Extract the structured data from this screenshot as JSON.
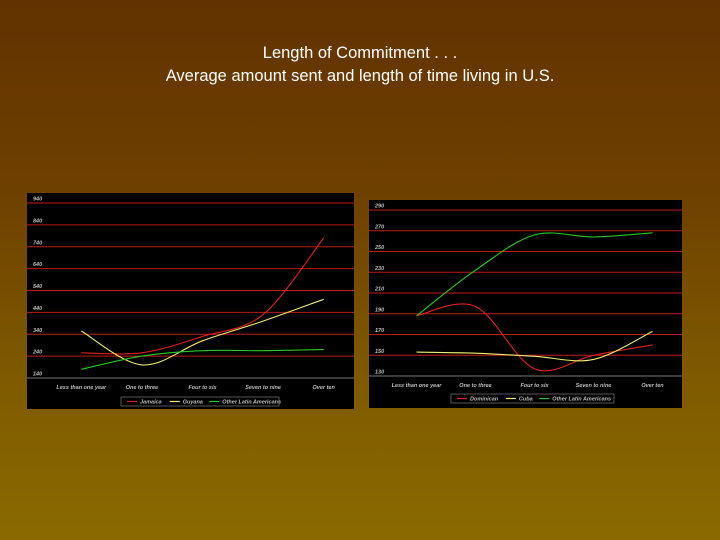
{
  "slide": {
    "title_line1": "Length of Commitment . . .",
    "title_line2": "Average amount sent and length of time living in U.S."
  },
  "chart_data": [
    {
      "type": "line",
      "categories": [
        "Less than one year",
        "One to three",
        "Four to six",
        "Seven to nine",
        "Over ten"
      ],
      "ylim": [
        140,
        940
      ],
      "yticks": [
        140,
        240,
        340,
        440,
        540,
        640,
        740,
        840,
        940
      ],
      "grid": true,
      "legend": "bottom",
      "series": [
        {
          "name": "Jamaica",
          "color": "#e0201c",
          "values": [
            255,
            255,
            330,
            430,
            780
          ]
        },
        {
          "name": "Guyana",
          "color": "#f0f070",
          "values": [
            355,
            200,
            310,
            400,
            500
          ]
        },
        {
          "name": "Other Latin Americans",
          "color": "#22cc22",
          "values": [
            180,
            240,
            265,
            265,
            270
          ]
        }
      ]
    },
    {
      "type": "line",
      "categories": [
        "Less than one year",
        "One to three",
        "Four to six",
        "Seven to nine",
        "Over ten"
      ],
      "ylim": [
        130,
        290
      ],
      "yticks": [
        130,
        150,
        170,
        190,
        210,
        230,
        250,
        270,
        290
      ],
      "grid": true,
      "legend": "bottom",
      "series": [
        {
          "name": "Dominican",
          "color": "#e0201c",
          "values": [
            188,
            197,
            137,
            150,
            160
          ]
        },
        {
          "name": "Cuba",
          "color": "#f0f070",
          "values": [
            153,
            152,
            149,
            146,
            173
          ]
        },
        {
          "name": "Other Latin Americans",
          "color": "#22cc22",
          "values": [
            188,
            232,
            266,
            264,
            268
          ]
        }
      ]
    }
  ]
}
